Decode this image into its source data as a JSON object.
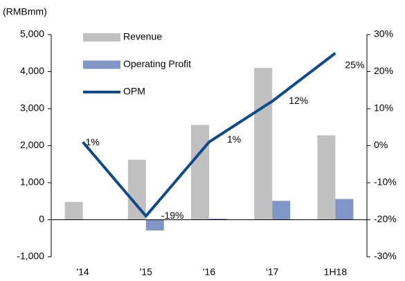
{
  "chart_data": {
    "type": "bar_line",
    "y_label": "(RMBmm)",
    "categories": [
      "'14",
      "'15",
      "'16",
      "'17",
      "1H18"
    ],
    "series": [
      {
        "name": "Revenue",
        "type": "bar",
        "color": "#c0c0c0",
        "values": [
          480,
          1620,
          2560,
          4100,
          2280
        ]
      },
      {
        "name": "Operating Profit",
        "type": "bar",
        "color": "#7f96c6",
        "values": [
          5,
          -290,
          30,
          510,
          560
        ]
      },
      {
        "name": "OPM",
        "type": "line",
        "axis": "y2",
        "color": "#0d4a8c",
        "values": [
          1,
          -19,
          1,
          12,
          25
        ],
        "value_labels": [
          "1%",
          "-19%",
          "1%",
          "12%",
          "25%"
        ]
      }
    ],
    "ylim": [
      -1000,
      5000
    ],
    "yticks": [
      {
        "value": -1000,
        "label": "-1,000"
      },
      0,
      {
        "value": 1000,
        "label": "1,000"
      },
      {
        "value": 2000,
        "label": "2,000"
      },
      {
        "value": 3000,
        "label": "3,000"
      },
      {
        "value": 4000,
        "label": "4,000"
      },
      {
        "value": 5000,
        "label": "5,000"
      }
    ],
    "y2lim": [
      -30,
      30
    ],
    "y2ticks": [
      {
        "value": -30,
        "label": "-30%"
      },
      {
        "value": -20,
        "label": "-20%"
      },
      {
        "value": -10,
        "label": "-10%"
      },
      {
        "value": 0,
        "label": "0%"
      },
      {
        "value": 10,
        "label": "10%"
      },
      {
        "value": 20,
        "label": "20%"
      },
      {
        "value": 30,
        "label": "30%"
      }
    ],
    "legend": "upper left",
    "grid": false
  }
}
